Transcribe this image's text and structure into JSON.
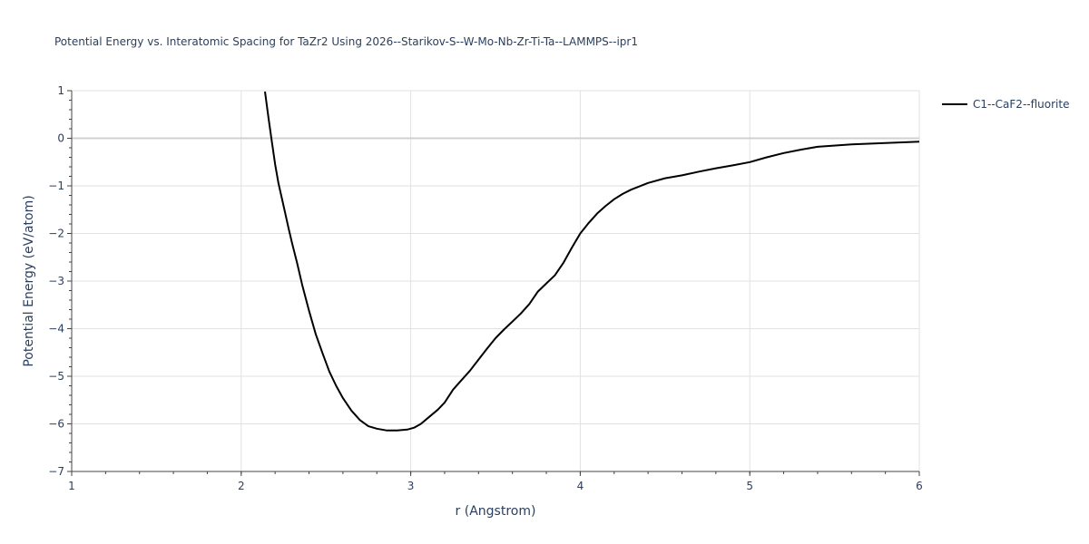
{
  "chart_data": {
    "type": "line",
    "title": "Potential Energy vs. Interatomic Spacing for TaZr2 Using 2026--Starikov-S--W-Mo-Nb-Zr-Ti-Ta--LAMMPS--ipr1",
    "xlabel": "r (Angstrom)",
    "ylabel": "Potential Energy (eV/atom)",
    "xlim": [
      1,
      6
    ],
    "ylim": [
      -7,
      1
    ],
    "x_ticks": [
      "1",
      "2",
      "3",
      "4",
      "5",
      "6"
    ],
    "y_ticks": [
      "1",
      "0",
      "−1",
      "−2",
      "−3",
      "−4",
      "−5",
      "−6",
      "−7"
    ],
    "grid": true,
    "legend_position": "top-right",
    "series": [
      {
        "name": "C1--CaF2--fluorite",
        "color": "#000000",
        "x": [
          2.14,
          2.16,
          2.18,
          2.2,
          2.22,
          2.25,
          2.28,
          2.3,
          2.33,
          2.36,
          2.4,
          2.44,
          2.48,
          2.52,
          2.56,
          2.6,
          2.65,
          2.7,
          2.75,
          2.8,
          2.86,
          2.92,
          2.98,
          3.02,
          3.06,
          3.1,
          3.16,
          3.2,
          3.25,
          3.3,
          3.35,
          3.4,
          3.45,
          3.5,
          3.55,
          3.6,
          3.65,
          3.7,
          3.75,
          3.8,
          3.85,
          3.9,
          3.95,
          4.0,
          4.05,
          4.1,
          4.15,
          4.2,
          4.25,
          4.3,
          4.4,
          4.5,
          4.6,
          4.7,
          4.8,
          4.9,
          5.0,
          5.1,
          5.2,
          5.3,
          5.4,
          5.6,
          5.8,
          6.0
        ],
        "y": [
          0.98,
          0.45,
          -0.05,
          -0.55,
          -0.95,
          -1.42,
          -1.9,
          -2.2,
          -2.62,
          -3.08,
          -3.62,
          -4.12,
          -4.52,
          -4.9,
          -5.2,
          -5.46,
          -5.72,
          -5.92,
          -6.05,
          -6.1,
          -6.14,
          -6.14,
          -6.12,
          -6.08,
          -6.0,
          -5.88,
          -5.7,
          -5.55,
          -5.28,
          -5.08,
          -4.88,
          -4.65,
          -4.42,
          -4.2,
          -4.02,
          -3.85,
          -3.68,
          -3.48,
          -3.22,
          -3.05,
          -2.88,
          -2.62,
          -2.3,
          -2.0,
          -1.78,
          -1.58,
          -1.42,
          -1.28,
          -1.17,
          -1.08,
          -0.94,
          -0.84,
          -0.78,
          -0.7,
          -0.63,
          -0.57,
          -0.5,
          -0.4,
          -0.31,
          -0.24,
          -0.18,
          -0.13,
          -0.1,
          -0.07
        ]
      }
    ]
  }
}
